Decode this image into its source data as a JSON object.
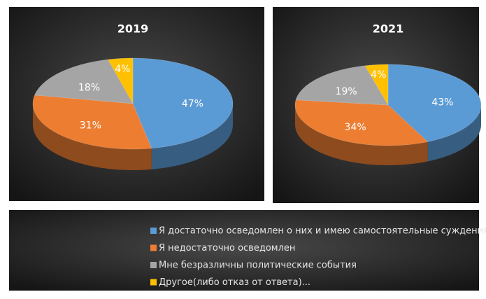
{
  "chart_data": [
    {
      "type": "pie3d",
      "title": "2019",
      "categories": [
        "Я достаточно осведомлен о них и имею самостоятельные суждения",
        "Я недостаточно осведомлен",
        "Мне безразличны политические события",
        "Другое(либо отказ от ответа)..."
      ],
      "values": [
        47,
        31,
        18,
        4
      ],
      "value_labels": [
        "47%",
        "31%",
        "18%",
        "4%"
      ],
      "colors": [
        "#5b9bd5",
        "#ed7d31",
        "#a5a5a5",
        "#ffc000"
      ]
    },
    {
      "type": "pie3d",
      "title": "2021",
      "categories": [
        "Я достаточно осведомлен о них и имею самостоятельные суждения",
        "Я недостаточно осведомлен",
        "Мне безразличны политические события",
        "Другое(либо отказ от ответа)..."
      ],
      "values": [
        43,
        34,
        19,
        4
      ],
      "value_labels": [
        "43%",
        "34%",
        "19%",
        "4%"
      ],
      "colors": [
        "#5b9bd5",
        "#ed7d31",
        "#a5a5a5",
        "#ffc000"
      ]
    }
  ]
}
